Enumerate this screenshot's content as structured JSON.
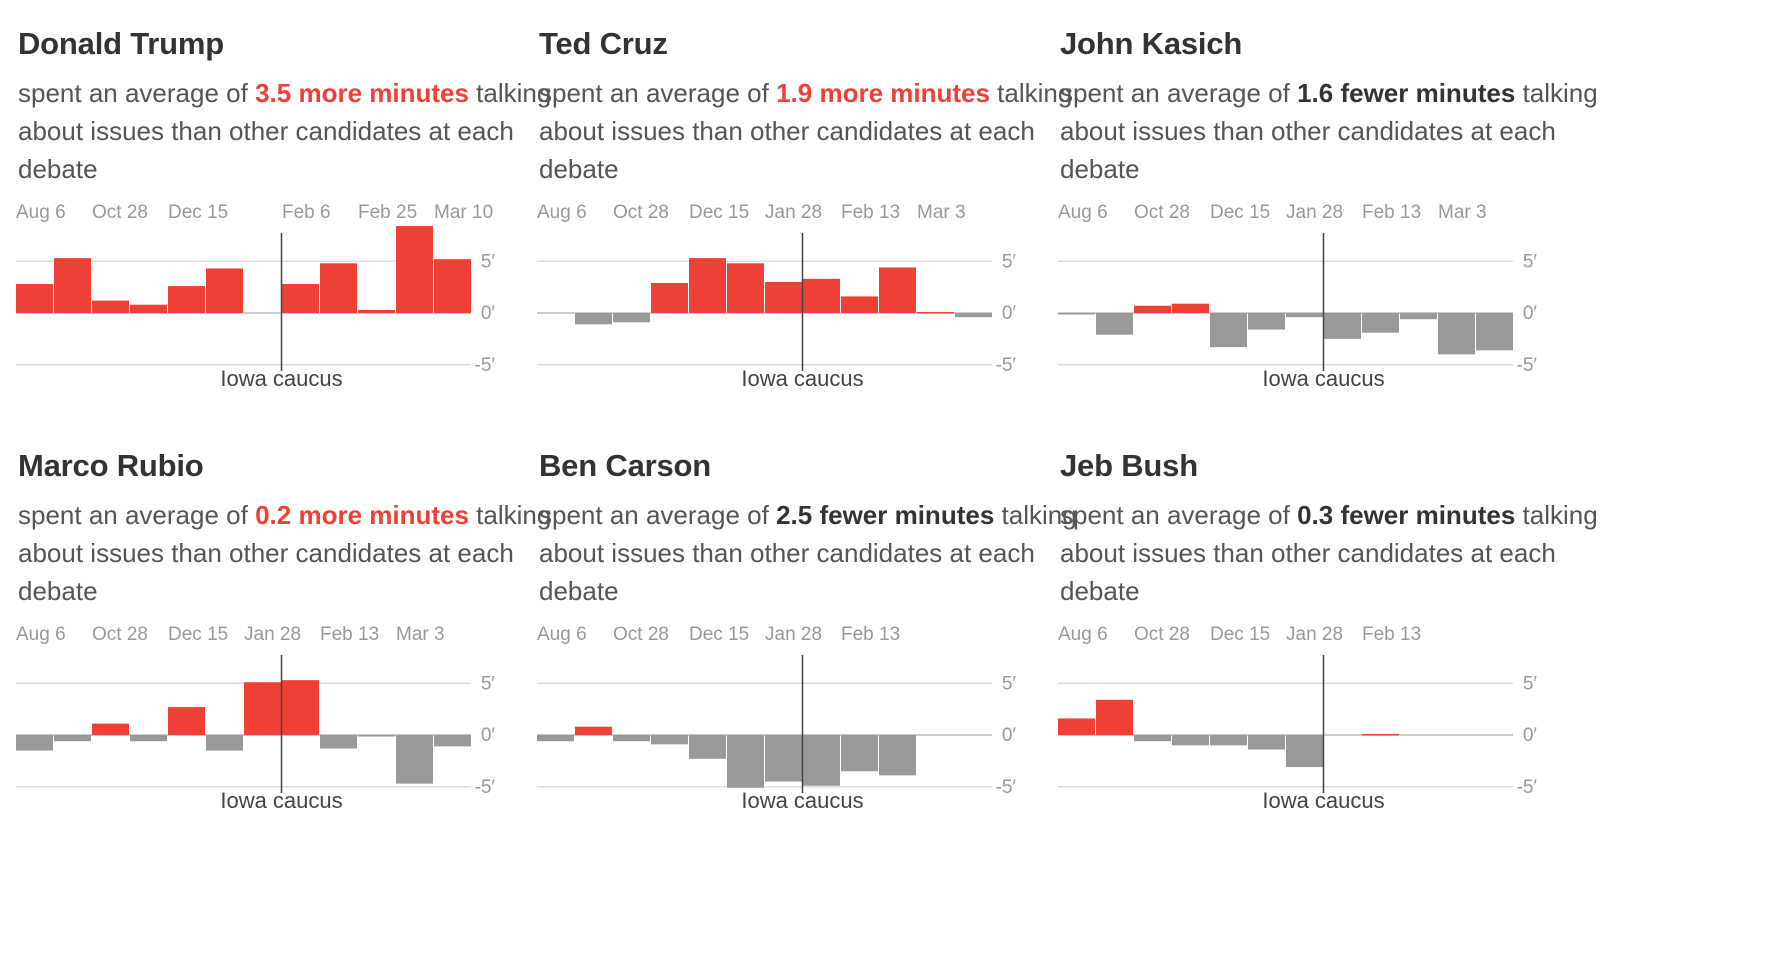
{
  "colors": {
    "positive": "#ee4035",
    "negative": "#999999",
    "grid": "#dddddd",
    "zero": "#bbbbbb",
    "marker": "#444444"
  },
  "text": {
    "prefix": "spent an average of",
    "suffix": "talking about issues than other candidates at each debate"
  },
  "chart_data": [
    {
      "type": "bar",
      "candidate": "Donald Trump",
      "stat": "3.5 more minutes",
      "direction": "more",
      "tick_labels": [
        {
          "label": "Aug 6",
          "at": 0
        },
        {
          "label": "Oct 28",
          "at": 2
        },
        {
          "label": "Dec 15",
          "at": 4
        },
        {
          "label": "Feb 6",
          "at": 7
        },
        {
          "label": "Feb 25",
          "at": 9
        },
        {
          "label": "Mar 10",
          "at": 11
        }
      ],
      "values": [
        2.8,
        5.3,
        1.2,
        0.8,
        2.6,
        4.3,
        null,
        2.8,
        4.8,
        0.3,
        8.4,
        5.2
      ],
      "ylim": [
        -5,
        8.4
      ],
      "yticks": [
        {
          "value": 5,
          "label": "5′"
        },
        {
          "value": 0,
          "label": "0′"
        },
        {
          "value": -5,
          "label": "-5′"
        }
      ],
      "marker": {
        "label": "Iowa caucus",
        "at": 7
      }
    },
    {
      "type": "bar",
      "candidate": "Ted Cruz",
      "stat": "1.9 more minutes",
      "direction": "more",
      "tick_labels": [
        {
          "label": "Aug 6",
          "at": 0
        },
        {
          "label": "Oct 28",
          "at": 2
        },
        {
          "label": "Dec 15",
          "at": 4
        },
        {
          "label": "Jan 28",
          "at": 6
        },
        {
          "label": "Feb 13",
          "at": 8
        },
        {
          "label": "Mar 3",
          "at": 10
        }
      ],
      "values": [
        0,
        -1.1,
        -0.9,
        2.9,
        5.3,
        4.8,
        3.0,
        3.3,
        1.6,
        4.4,
        0.1,
        -0.4
      ],
      "ylim": [
        -5,
        8.4
      ],
      "yticks": [
        {
          "value": 5,
          "label": "5′"
        },
        {
          "value": 0,
          "label": "0′"
        },
        {
          "value": -5,
          "label": "-5′"
        }
      ],
      "marker": {
        "label": "Iowa caucus",
        "at": 7
      }
    },
    {
      "type": "bar",
      "candidate": "John Kasich",
      "stat": "1.6 fewer minutes",
      "direction": "fewer",
      "tick_labels": [
        {
          "label": "Aug 6",
          "at": 0
        },
        {
          "label": "Oct 28",
          "at": 2
        },
        {
          "label": "Dec 15",
          "at": 4
        },
        {
          "label": "Jan 28",
          "at": 6
        },
        {
          "label": "Feb 13",
          "at": 8
        },
        {
          "label": "Mar 3",
          "at": 10
        }
      ],
      "values": [
        -0.1,
        -2.1,
        0.7,
        0.9,
        -3.3,
        -1.6,
        -0.4,
        -2.5,
        -1.9,
        -0.6,
        -4.0,
        -3.6
      ],
      "ylim": [
        -5,
        8.4
      ],
      "yticks": [
        {
          "value": 5,
          "label": "5′"
        },
        {
          "value": 0,
          "label": "0′"
        },
        {
          "value": -5,
          "label": "-5′"
        }
      ],
      "marker": {
        "label": "Iowa caucus",
        "at": 7
      }
    },
    {
      "type": "bar",
      "candidate": "Marco Rubio",
      "stat": "0.2 more minutes",
      "direction": "more",
      "tick_labels": [
        {
          "label": "Aug 6",
          "at": 0
        },
        {
          "label": "Oct 28",
          "at": 2
        },
        {
          "label": "Dec 15",
          "at": 4
        },
        {
          "label": "Jan 28",
          "at": 6
        },
        {
          "label": "Feb 13",
          "at": 8
        },
        {
          "label": "Mar 3",
          "at": 10
        }
      ],
      "values": [
        -1.5,
        -0.6,
        1.1,
        -0.6,
        2.7,
        -1.5,
        5.1,
        5.3,
        -1.3,
        -0.1,
        -4.7,
        -1.1
      ],
      "ylim": [
        -5,
        8.4
      ],
      "yticks": [
        {
          "value": 5,
          "label": "5′"
        },
        {
          "value": 0,
          "label": "0′"
        },
        {
          "value": -5,
          "label": "-5′"
        }
      ],
      "marker": {
        "label": "Iowa caucus",
        "at": 7
      }
    },
    {
      "type": "bar",
      "candidate": "Ben Carson",
      "stat": "2.5 fewer minutes",
      "direction": "fewer",
      "tick_labels": [
        {
          "label": "Aug 6",
          "at": 0
        },
        {
          "label": "Oct 28",
          "at": 2
        },
        {
          "label": "Dec 15",
          "at": 4
        },
        {
          "label": "Jan 28",
          "at": 6
        },
        {
          "label": "Feb 13",
          "at": 8
        }
      ],
      "values": [
        -0.6,
        0.8,
        -0.6,
        -0.9,
        -2.3,
        -5.1,
        -4.5,
        -4.9,
        -3.5,
        -3.9
      ],
      "ylim": [
        -5,
        8.4
      ],
      "yticks": [
        {
          "value": 5,
          "label": "5′"
        },
        {
          "value": 0,
          "label": "0′"
        },
        {
          "value": -5,
          "label": "-5′"
        }
      ],
      "marker": {
        "label": "Iowa caucus",
        "at": 7
      }
    },
    {
      "type": "bar",
      "candidate": "Jeb Bush",
      "stat": "0.3 fewer minutes",
      "direction": "fewer",
      "tick_labels": [
        {
          "label": "Aug 6",
          "at": 0
        },
        {
          "label": "Oct 28",
          "at": 2
        },
        {
          "label": "Dec 15",
          "at": 4
        },
        {
          "label": "Jan 28",
          "at": 6
        },
        {
          "label": "Feb 13",
          "at": 8
        }
      ],
      "values": [
        1.6,
        3.4,
        -0.6,
        -1.0,
        -1.0,
        -1.4,
        -3.1,
        null,
        0.1
      ],
      "ylim": [
        -5,
        8.4
      ],
      "yticks": [
        {
          "value": 5,
          "label": "5′"
        },
        {
          "value": 0,
          "label": "0′"
        },
        {
          "value": -5,
          "label": "-5′"
        }
      ],
      "marker": {
        "label": "Iowa caucus",
        "at": 7
      }
    }
  ]
}
